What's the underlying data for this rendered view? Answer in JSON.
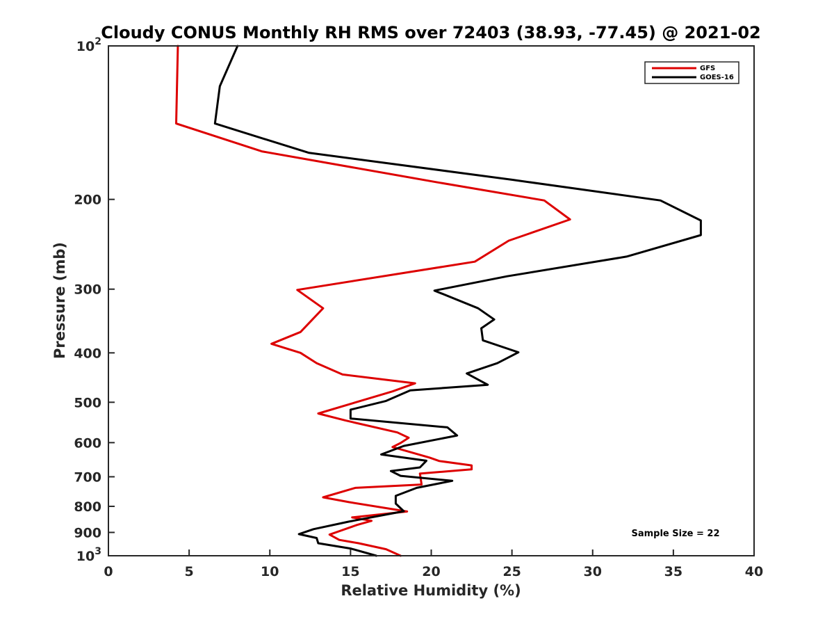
{
  "chart_data": {
    "type": "line",
    "title": "Cloudy CONUS Monthly RH RMS over 72403 (38.93, -77.45) @ 2021-02",
    "xlabel": "Relative Humidity (%)",
    "ylabel": "Pressure (mb)",
    "xlim": [
      0,
      40
    ],
    "ylim": [
      100,
      1000
    ],
    "y_scale": "log",
    "y_reversed": true,
    "grid": false,
    "legend_position": "top-right",
    "xticks": [
      {
        "value": 0,
        "label": "0"
      },
      {
        "value": 5,
        "label": "5"
      },
      {
        "value": 10,
        "label": "10"
      },
      {
        "value": 15,
        "label": "15"
      },
      {
        "value": 20,
        "label": "20"
      },
      {
        "value": 25,
        "label": "25"
      },
      {
        "value": 30,
        "label": "30"
      },
      {
        "value": 35,
        "label": "35"
      },
      {
        "value": 40,
        "label": "40"
      }
    ],
    "yticks": [
      {
        "value": 100,
        "label": "10",
        "sup": "2"
      },
      {
        "value": 200,
        "label": "200",
        "sup": ""
      },
      {
        "value": 300,
        "label": "300",
        "sup": ""
      },
      {
        "value": 400,
        "label": "400",
        "sup": ""
      },
      {
        "value": 500,
        "label": "500",
        "sup": ""
      },
      {
        "value": 600,
        "label": "600",
        "sup": ""
      },
      {
        "value": 700,
        "label": "700",
        "sup": ""
      },
      {
        "value": 800,
        "label": "800",
        "sup": ""
      },
      {
        "value": 900,
        "label": "900",
        "sup": ""
      },
      {
        "value": 1000,
        "label": "10",
        "sup": "3"
      }
    ],
    "annotation": "Sample Size = 22",
    "series": [
      {
        "name": "GFS",
        "color": "#dd0000",
        "points": [
          [
            4.3,
            100
          ],
          [
            4.3,
            100.5
          ],
          [
            4.2,
            142
          ],
          [
            9.5,
            161
          ],
          [
            20.3,
            185
          ],
          [
            27.0,
            201
          ],
          [
            28.6,
            219
          ],
          [
            24.8,
            241
          ],
          [
            22.7,
            265
          ],
          [
            11.7,
            301
          ],
          [
            13.3,
            327
          ],
          [
            11.9,
            364
          ],
          [
            10.1,
            384
          ],
          [
            11.9,
            400
          ],
          [
            12.9,
            419
          ],
          [
            14.5,
            441
          ],
          [
            19.0,
            459
          ],
          [
            17.6,
            476
          ],
          [
            13.0,
            526
          ],
          [
            14.7,
            543
          ],
          [
            17.9,
            573
          ],
          [
            18.6,
            587
          ],
          [
            18.1,
            601
          ],
          [
            17.6,
            612
          ],
          [
            19.9,
            642
          ],
          [
            20.5,
            652
          ],
          [
            22.5,
            665
          ],
          [
            22.5,
            677
          ],
          [
            19.3,
            690
          ],
          [
            19.4,
            725
          ],
          [
            15.3,
            736
          ],
          [
            13.3,
            768
          ],
          [
            14.9,
            785
          ],
          [
            18.5,
            819
          ],
          [
            15.1,
            841
          ],
          [
            16.3,
            854
          ],
          [
            15.4,
            870
          ],
          [
            13.7,
            909
          ],
          [
            14.3,
            931
          ],
          [
            15.5,
            945
          ],
          [
            17.2,
            971
          ],
          [
            18.1,
            1000
          ]
        ]
      },
      {
        "name": "GOES-16",
        "color": "#000000",
        "points": [
          [
            8.0,
            100
          ],
          [
            6.9,
            120
          ],
          [
            6.6,
            142
          ],
          [
            12.4,
            162
          ],
          [
            25.0,
            183
          ],
          [
            34.2,
            201
          ],
          [
            36.7,
            220
          ],
          [
            36.7,
            235
          ],
          [
            32.1,
            259
          ],
          [
            24.7,
            283
          ],
          [
            20.2,
            302
          ],
          [
            22.9,
            327
          ],
          [
            23.9,
            344
          ],
          [
            23.1,
            358
          ],
          [
            23.2,
            378
          ],
          [
            25.4,
            399
          ],
          [
            24.1,
            419
          ],
          [
            22.2,
            439
          ],
          [
            23.5,
            462
          ],
          [
            18.7,
            474
          ],
          [
            17.2,
            497
          ],
          [
            15.0,
            517
          ],
          [
            15.0,
            538
          ],
          [
            21.0,
            560
          ],
          [
            21.6,
            581
          ],
          [
            18.3,
            609
          ],
          [
            16.9,
            633
          ],
          [
            19.7,
            651
          ],
          [
            19.3,
            671
          ],
          [
            17.5,
            682
          ],
          [
            18.1,
            697
          ],
          [
            21.3,
            713
          ],
          [
            19.1,
            736
          ],
          [
            17.8,
            763
          ],
          [
            17.8,
            790
          ],
          [
            18.3,
            818
          ],
          [
            14.9,
            857
          ],
          [
            12.7,
            887
          ],
          [
            11.8,
            907
          ],
          [
            12.9,
            923
          ],
          [
            13.0,
            945
          ],
          [
            15.0,
            968
          ],
          [
            16.6,
            1000
          ]
        ]
      }
    ]
  }
}
